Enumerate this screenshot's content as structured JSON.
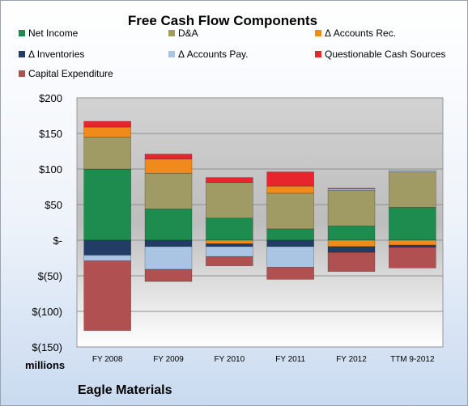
{
  "chart_data": {
    "type": "bar",
    "stacked": true,
    "title": "Free Cash Flow Components",
    "unit_label": "millions",
    "company": "Eagle Materials",
    "categories": [
      "FY 2008",
      "FY 2009",
      "FY 2010",
      "FY 2011",
      "FY 2012",
      "TTM 9-2012"
    ],
    "ylim": [
      -150,
      200
    ],
    "yticks": [
      200,
      150,
      100,
      50,
      0,
      -50,
      -100,
      -150
    ],
    "ytick_labels": [
      "$200",
      "$150",
      "$100",
      "$50",
      "$-",
      "$(50)",
      "$(100)",
      "$(150)"
    ],
    "grid": true,
    "legend_position": "top",
    "series": [
      {
        "name": "Net Income",
        "color": "#1e8c4e",
        "values": [
          100,
          44,
          31,
          16,
          20,
          46
        ]
      },
      {
        "name": "D&A",
        "color": "#a09a64",
        "values": [
          45,
          50,
          50,
          50,
          50,
          50
        ]
      },
      {
        "name": "Δ Accounts Rec.",
        "color": "#f08a1c",
        "values": [
          14,
          20,
          -5,
          10,
          -9,
          -7
        ]
      },
      {
        "name": "Δ Inventories",
        "color": "#223c66",
        "values": [
          -21,
          -9,
          -4,
          -9,
          -8,
          -3
        ]
      },
      {
        "name": "Δ Accounts Pay.",
        "color": "#aac4e4",
        "values": [
          -8,
          -32,
          -14,
          -29,
          2,
          2
        ]
      },
      {
        "name": "Questionable Cash Sources",
        "color": "#e6262c",
        "values": [
          8,
          7,
          7,
          20,
          1,
          0
        ]
      },
      {
        "name": "Capital Expenditure",
        "color": "#b05050",
        "values": [
          -98,
          -17,
          -13,
          -17,
          -27,
          -29
        ]
      }
    ]
  }
}
